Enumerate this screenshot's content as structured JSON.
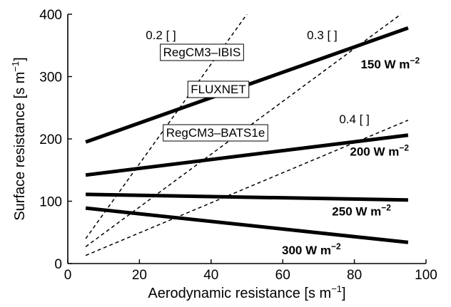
{
  "chart_data": {
    "type": "line",
    "xlabel": "Aerodynamic resistance [s m",
    "xlabel_sup": "−1",
    "xlabel_end": "]",
    "ylabel": "Surface resistance [s m",
    "ylabel_sup": "−1",
    "ylabel_end": "]",
    "xlim": [
      0,
      100
    ],
    "ylim": [
      0,
      400
    ],
    "xticks": [
      0,
      20,
      40,
      60,
      80,
      100
    ],
    "yticks": [
      0,
      100,
      200,
      300,
      400
    ],
    "grid": false,
    "solid_lines": [
      {
        "label": "150 W m",
        "sup": "−2",
        "x": [
          5,
          95
        ],
        "y": [
          195,
          378
        ]
      },
      {
        "label": "200 W m",
        "sup": "−2",
        "x": [
          5,
          95
        ],
        "y": [
          142,
          206
        ]
      },
      {
        "label": "250 W m",
        "sup": "−2",
        "x": [
          5,
          95
        ],
        "y": [
          111,
          102
        ]
      },
      {
        "label": "300 W m",
        "sup": "−2",
        "x": [
          5,
          95
        ],
        "y": [
          89,
          34
        ]
      }
    ],
    "dashed_lines": [
      {
        "label": "0.2 [ ]",
        "x": [
          5,
          50
        ],
        "y": [
          40,
          400
        ]
      },
      {
        "label": "0.3 [ ]",
        "x": [
          5,
          93
        ],
        "y": [
          27,
          400
        ]
      },
      {
        "label": "0.4 [ ]",
        "x": [
          5,
          95
        ],
        "y": [
          13,
          230
        ]
      }
    ],
    "boxed_labels": [
      "RegCM3–IBIS",
      "FLUXNET",
      "RegCM3–BATS1e"
    ]
  }
}
